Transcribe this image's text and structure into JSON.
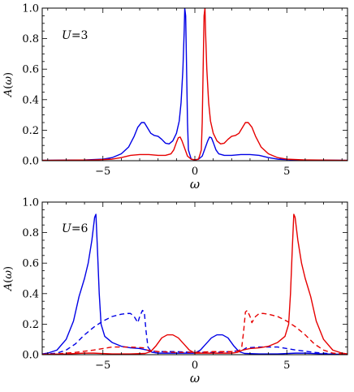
{
  "chart_data": [
    {
      "type": "line",
      "annotation": {
        "var": "U",
        "value": "=3"
      },
      "ylabel": {
        "pre": "A(",
        "var": "ω",
        "post": ")"
      },
      "xlabel": "ω",
      "xlim": [
        -8.3,
        8.3
      ],
      "ylim": [
        0,
        1.0
      ],
      "xticks": [
        {
          "v": -5,
          "label": "−5"
        },
        {
          "v": 0,
          "label": "0"
        },
        {
          "v": 5,
          "label": "5"
        }
      ],
      "yticks": [
        {
          "v": 0,
          "label": "0.0"
        },
        {
          "v": 0.2,
          "label": "0.2"
        },
        {
          "v": 0.4,
          "label": "0.4"
        },
        {
          "v": 0.6,
          "label": "0.6"
        },
        {
          "v": 0.8,
          "label": "0.8"
        },
        {
          "v": 1.0,
          "label": "1.0"
        }
      ],
      "series": [
        {
          "color": "#0000e6",
          "dash": false,
          "points": [
            [
              -8.3,
              0.002
            ],
            [
              -6,
              0.005
            ],
            [
              -5,
              0.01
            ],
            [
              -4.5,
              0.02
            ],
            [
              -4,
              0.045
            ],
            [
              -3.6,
              0.09
            ],
            [
              -3.3,
              0.16
            ],
            [
              -3.1,
              0.22
            ],
            [
              -2.9,
              0.25
            ],
            [
              -2.75,
              0.25
            ],
            [
              -2.6,
              0.22
            ],
            [
              -2.4,
              0.18
            ],
            [
              -2.2,
              0.165
            ],
            [
              -2.0,
              0.16
            ],
            [
              -1.8,
              0.14
            ],
            [
              -1.6,
              0.115
            ],
            [
              -1.4,
              0.11
            ],
            [
              -1.2,
              0.13
            ],
            [
              -1.0,
              0.18
            ],
            [
              -0.85,
              0.26
            ],
            [
              -0.75,
              0.38
            ],
            [
              -0.65,
              0.6
            ],
            [
              -0.58,
              0.85
            ],
            [
              -0.55,
              1.0
            ],
            [
              -0.5,
              0.95
            ],
            [
              -0.45,
              0.6
            ],
            [
              -0.4,
              0.25
            ],
            [
              -0.35,
              0.07
            ],
            [
              -0.2,
              0.01
            ],
            [
              0,
              0.005
            ],
            [
              0.2,
              0.01
            ],
            [
              0.4,
              0.03
            ],
            [
              0.55,
              0.08
            ],
            [
              0.7,
              0.13
            ],
            [
              0.8,
              0.155
            ],
            [
              0.9,
              0.15
            ],
            [
              1.0,
              0.12
            ],
            [
              1.15,
              0.07
            ],
            [
              1.3,
              0.045
            ],
            [
              1.6,
              0.035
            ],
            [
              2.0,
              0.035
            ],
            [
              2.5,
              0.04
            ],
            [
              3.0,
              0.04
            ],
            [
              3.5,
              0.035
            ],
            [
              4.0,
              0.02
            ],
            [
              4.5,
              0.01
            ],
            [
              5.5,
              0.005
            ],
            [
              8.3,
              0.002
            ]
          ]
        },
        {
          "color": "#e60000",
          "dash": false,
          "points": [
            [
              -8.3,
              0.002
            ],
            [
              -5.5,
              0.005
            ],
            [
              -4.5,
              0.01
            ],
            [
              -4,
              0.02
            ],
            [
              -3.5,
              0.035
            ],
            [
              -3,
              0.04
            ],
            [
              -2.5,
              0.04
            ],
            [
              -2,
              0.035
            ],
            [
              -1.6,
              0.035
            ],
            [
              -1.3,
              0.045
            ],
            [
              -1.15,
              0.07
            ],
            [
              -1.0,
              0.12
            ],
            [
              -0.9,
              0.15
            ],
            [
              -0.8,
              0.155
            ],
            [
              -0.7,
              0.13
            ],
            [
              -0.55,
              0.08
            ],
            [
              -0.4,
              0.03
            ],
            [
              -0.2,
              0.01
            ],
            [
              0,
              0.005
            ],
            [
              0.2,
              0.01
            ],
            [
              0.35,
              0.07
            ],
            [
              0.4,
              0.25
            ],
            [
              0.45,
              0.6
            ],
            [
              0.5,
              0.95
            ],
            [
              0.55,
              1.0
            ],
            [
              0.58,
              0.85
            ],
            [
              0.65,
              0.6
            ],
            [
              0.75,
              0.38
            ],
            [
              0.85,
              0.26
            ],
            [
              1.0,
              0.18
            ],
            [
              1.2,
              0.13
            ],
            [
              1.4,
              0.11
            ],
            [
              1.6,
              0.115
            ],
            [
              1.8,
              0.14
            ],
            [
              2.0,
              0.16
            ],
            [
              2.2,
              0.165
            ],
            [
              2.4,
              0.18
            ],
            [
              2.6,
              0.22
            ],
            [
              2.75,
              0.25
            ],
            [
              2.9,
              0.25
            ],
            [
              3.1,
              0.22
            ],
            [
              3.3,
              0.16
            ],
            [
              3.6,
              0.09
            ],
            [
              4.0,
              0.045
            ],
            [
              4.5,
              0.02
            ],
            [
              5,
              0.01
            ],
            [
              6,
              0.005
            ],
            [
              8.3,
              0.002
            ]
          ]
        }
      ]
    },
    {
      "type": "line",
      "annotation": {
        "var": "U",
        "value": "=6"
      },
      "ylabel": {
        "pre": "A(",
        "var": "ω",
        "post": ")"
      },
      "xlabel": "ω",
      "xlim": [
        -8.3,
        8.3
      ],
      "ylim": [
        0,
        1.0
      ],
      "xticks": [
        {
          "v": -5,
          "label": "−5"
        },
        {
          "v": 0,
          "label": "0"
        },
        {
          "v": 5,
          "label": "5"
        }
      ],
      "yticks": [
        {
          "v": 0,
          "label": "0.0"
        },
        {
          "v": 0.2,
          "label": "0.2"
        },
        {
          "v": 0.4,
          "label": "0.4"
        },
        {
          "v": 0.6,
          "label": "0.6"
        },
        {
          "v": 0.8,
          "label": "0.8"
        },
        {
          "v": 1.0,
          "label": "1.0"
        }
      ],
      "series": [
        {
          "color": "#0000e6",
          "dash": false,
          "points": [
            [
              -8.3,
              0.005
            ],
            [
              -8,
              0.01
            ],
            [
              -7.5,
              0.03
            ],
            [
              -7,
              0.1
            ],
            [
              -6.6,
              0.22
            ],
            [
              -6.3,
              0.38
            ],
            [
              -6.0,
              0.5
            ],
            [
              -5.8,
              0.6
            ],
            [
              -5.6,
              0.75
            ],
            [
              -5.45,
              0.9
            ],
            [
              -5.38,
              0.92
            ],
            [
              -5.3,
              0.7
            ],
            [
              -5.2,
              0.4
            ],
            [
              -5.1,
              0.2
            ],
            [
              -4.9,
              0.12
            ],
            [
              -4.5,
              0.08
            ],
            [
              -4,
              0.055
            ],
            [
              -3.5,
              0.045
            ],
            [
              -3.0,
              0.04
            ],
            [
              -2.6,
              0.03
            ],
            [
              -2.3,
              0.015
            ],
            [
              -2.0,
              0.01
            ],
            [
              -1.5,
              0.01
            ],
            [
              -1,
              0.01
            ],
            [
              0,
              0.01
            ],
            [
              0.3,
              0.03
            ],
            [
              0.6,
              0.07
            ],
            [
              0.9,
              0.11
            ],
            [
              1.2,
              0.13
            ],
            [
              1.5,
              0.13
            ],
            [
              1.8,
              0.11
            ],
            [
              2.1,
              0.06
            ],
            [
              2.4,
              0.02
            ],
            [
              2.7,
              0.008
            ],
            [
              3.5,
              0.005
            ],
            [
              4.5,
              0.005
            ],
            [
              5.5,
              0.01
            ],
            [
              6,
              0.01
            ],
            [
              7,
              0.005
            ],
            [
              8.3,
              0.002
            ]
          ]
        },
        {
          "color": "#0000e6",
          "dash": true,
          "points": [
            [
              -8.3,
              0.003
            ],
            [
              -7.5,
              0.01
            ],
            [
              -7,
              0.03
            ],
            [
              -6.5,
              0.07
            ],
            [
              -6,
              0.13
            ],
            [
              -5.5,
              0.18
            ],
            [
              -5,
              0.22
            ],
            [
              -4.5,
              0.25
            ],
            [
              -4,
              0.265
            ],
            [
              -3.7,
              0.27
            ],
            [
              -3.5,
              0.27
            ],
            [
              -3.3,
              0.25
            ],
            [
              -3.1,
              0.21
            ],
            [
              -3.0,
              0.25
            ],
            [
              -2.85,
              0.29
            ],
            [
              -2.75,
              0.28
            ],
            [
              -2.65,
              0.15
            ],
            [
              -2.55,
              0.05
            ],
            [
              -2.4,
              0.025
            ],
            [
              -2,
              0.02
            ],
            [
              -1,
              0.02
            ],
            [
              0,
              0.015
            ],
            [
              1,
              0.015
            ],
            [
              2,
              0.02
            ],
            [
              2.6,
              0.03
            ],
            [
              2.8,
              0.045
            ],
            [
              3.5,
              0.05
            ],
            [
              4.5,
              0.05
            ],
            [
              5,
              0.04
            ],
            [
              5.5,
              0.03
            ],
            [
              6.5,
              0.015
            ],
            [
              7.5,
              0.005
            ],
            [
              8.3,
              0.002
            ]
          ]
        },
        {
          "color": "#e60000",
          "dash": false,
          "points": [
            [
              -8.3,
              0.002
            ],
            [
              -7,
              0.005
            ],
            [
              -6,
              0.01
            ],
            [
              -5.5,
              0.01
            ],
            [
              -4.5,
              0.005
            ],
            [
              -3.5,
              0.005
            ],
            [
              -2.7,
              0.008
            ],
            [
              -2.4,
              0.02
            ],
            [
              -2.1,
              0.06
            ],
            [
              -1.8,
              0.11
            ],
            [
              -1.5,
              0.13
            ],
            [
              -1.2,
              0.13
            ],
            [
              -0.9,
              0.11
            ],
            [
              -0.6,
              0.07
            ],
            [
              -0.3,
              0.03
            ],
            [
              0,
              0.01
            ],
            [
              1,
              0.01
            ],
            [
              1.5,
              0.01
            ],
            [
              2.0,
              0.01
            ],
            [
              2.3,
              0.015
            ],
            [
              2.6,
              0.03
            ],
            [
              3.0,
              0.04
            ],
            [
              3.5,
              0.045
            ],
            [
              4,
              0.055
            ],
            [
              4.5,
              0.08
            ],
            [
              4.9,
              0.12
            ],
            [
              5.1,
              0.2
            ],
            [
              5.2,
              0.4
            ],
            [
              5.3,
              0.7
            ],
            [
              5.38,
              0.92
            ],
            [
              5.45,
              0.9
            ],
            [
              5.6,
              0.75
            ],
            [
              5.8,
              0.6
            ],
            [
              6.0,
              0.5
            ],
            [
              6.3,
              0.38
            ],
            [
              6.6,
              0.22
            ],
            [
              7,
              0.1
            ],
            [
              7.5,
              0.03
            ],
            [
              8,
              0.01
            ],
            [
              8.3,
              0.005
            ]
          ]
        },
        {
          "color": "#e60000",
          "dash": true,
          "points": [
            [
              -8.3,
              0.002
            ],
            [
              -7.5,
              0.005
            ],
            [
              -6.5,
              0.015
            ],
            [
              -5.5,
              0.03
            ],
            [
              -5,
              0.04
            ],
            [
              -4.5,
              0.05
            ],
            [
              -3.5,
              0.05
            ],
            [
              -2.8,
              0.045
            ],
            [
              -2.6,
              0.03
            ],
            [
              -2,
              0.02
            ],
            [
              -1,
              0.015
            ],
            [
              0,
              0.015
            ],
            [
              1,
              0.02
            ],
            [
              2,
              0.02
            ],
            [
              2.4,
              0.025
            ],
            [
              2.55,
              0.05
            ],
            [
              2.65,
              0.15
            ],
            [
              2.75,
              0.28
            ],
            [
              2.85,
              0.29
            ],
            [
              3.0,
              0.25
            ],
            [
              3.1,
              0.21
            ],
            [
              3.3,
              0.25
            ],
            [
              3.5,
              0.27
            ],
            [
              3.7,
              0.27
            ],
            [
              4,
              0.265
            ],
            [
              4.5,
              0.25
            ],
            [
              5,
              0.22
            ],
            [
              5.5,
              0.18
            ],
            [
              6,
              0.13
            ],
            [
              6.5,
              0.07
            ],
            [
              7,
              0.03
            ],
            [
              7.5,
              0.01
            ],
            [
              8.3,
              0.003
            ]
          ]
        }
      ]
    }
  ]
}
